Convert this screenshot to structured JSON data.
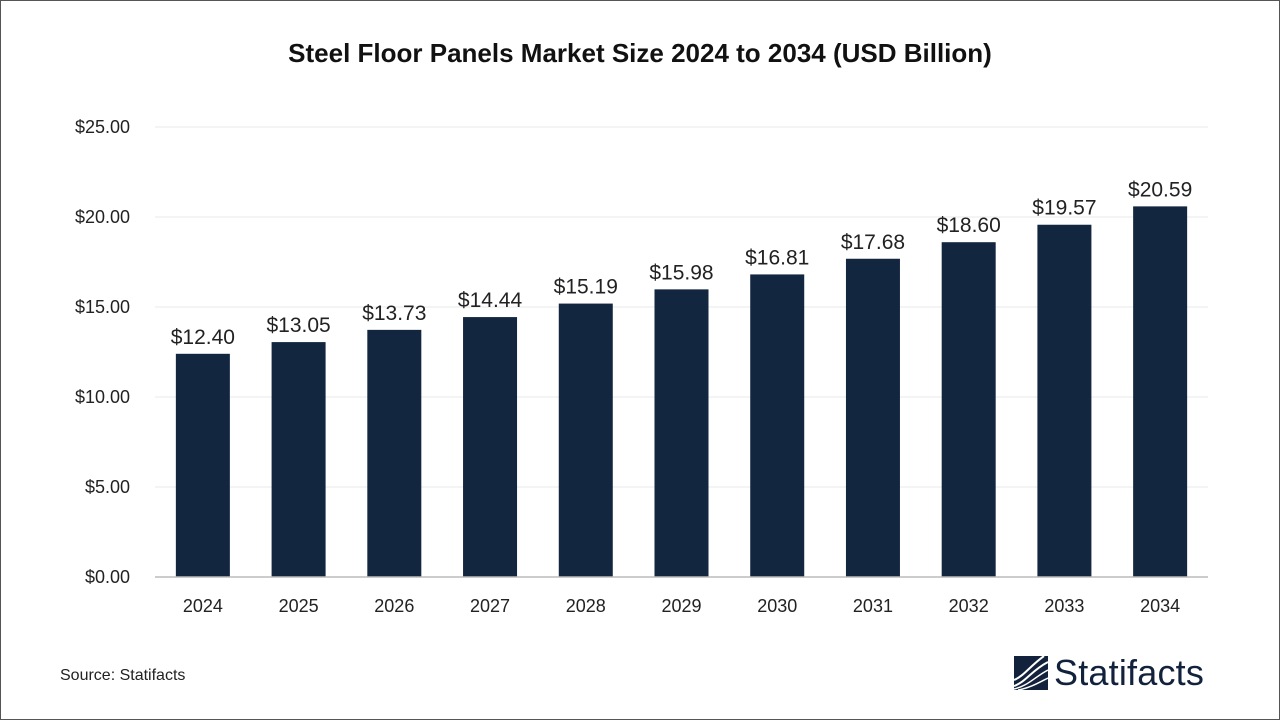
{
  "title": "Steel Floor Panels Market Size 2024 to 2034 (USD Billion)",
  "source": "Source: Statifacts",
  "logo_text": "Statifacts",
  "colors": {
    "bar": "#12263f",
    "grid": "#e8e8e8",
    "axis": "#bbbbbb"
  },
  "chart_data": {
    "type": "bar",
    "title": "Steel Floor Panels Market Size 2024 to 2034 (USD Billion)",
    "categories": [
      "2024",
      "2025",
      "2026",
      "2027",
      "2028",
      "2029",
      "2030",
      "2031",
      "2032",
      "2033",
      "2034"
    ],
    "values": [
      12.4,
      13.05,
      13.73,
      14.44,
      15.19,
      15.98,
      16.81,
      17.68,
      18.6,
      19.57,
      20.59
    ],
    "data_labels": [
      "$12.40",
      "$13.05",
      "$13.73",
      "$14.44",
      "$15.19",
      "$15.98",
      "$16.81",
      "$17.68",
      "$18.60",
      "$19.57",
      "$20.59"
    ],
    "yticks": [
      0,
      5,
      10,
      15,
      20,
      25
    ],
    "ytick_labels": [
      "$0.00",
      "$5.00",
      "$10.00",
      "$15.00",
      "$20.00",
      "$25.00"
    ],
    "ylim": [
      0,
      25
    ],
    "xlabel": "",
    "ylabel": "",
    "grid": true,
    "legend": "none"
  }
}
